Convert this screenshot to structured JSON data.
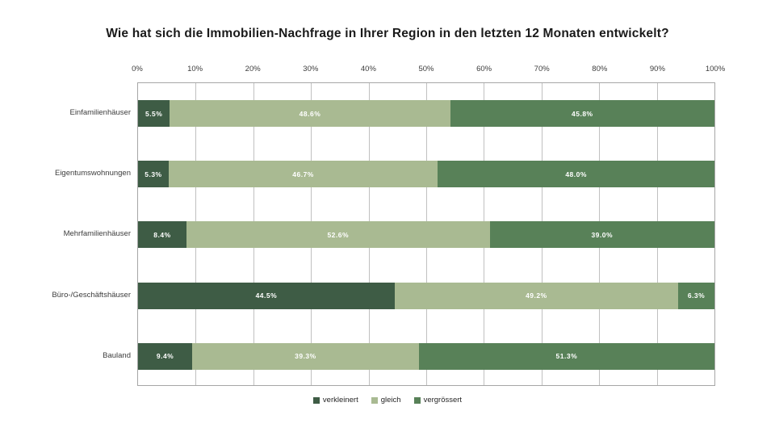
{
  "title": "Wie hat sich die Immobilien-Nachfrage in Ihrer Region in den letzten 12 Monaten entwickelt?",
  "chart_data": {
    "type": "bar",
    "subtype": "horizontal-stacked-100",
    "title": "Wie hat sich die Immobilien-Nachfrage in Ihrer Region in den letzten 12 Monaten entwickelt?",
    "categories": [
      "Einfamilienhäuser",
      "Eigentumswohnungen",
      "Mehrfamilienhäuser",
      "Büro-/Geschäftshäuser",
      "Bauland"
    ],
    "series": [
      {
        "name": "verkleinert",
        "color": "#3e5c45",
        "values": [
          5.5,
          5.3,
          8.4,
          44.5,
          9.4
        ]
      },
      {
        "name": "gleich",
        "color": "#a9ba92",
        "values": [
          48.6,
          46.7,
          52.6,
          49.2,
          39.3
        ]
      },
      {
        "name": "vergrössert",
        "color": "#588158",
        "values": [
          45.8,
          48.0,
          39.0,
          6.3,
          51.3
        ]
      }
    ],
    "value_label_suffix": "%",
    "x_axis": {
      "position": "top",
      "min": 0,
      "max": 100,
      "tick_labels": [
        "0%",
        "10%",
        "20%",
        "30%",
        "40%",
        "50%",
        "60%",
        "70%",
        "80%",
        "90%",
        "100%"
      ]
    },
    "legend": {
      "position": "bottom",
      "entries": [
        "verkleinert",
        "gleich",
        "vergrössert"
      ]
    },
    "grid": true
  },
  "colors": {
    "background": "#ffffff",
    "gridline": "#c0c0c0",
    "plot_border": "#a6a6a6",
    "axis_text": "#3c3c3c",
    "bar_label_text": "#ffffff",
    "title_text": "#1a1a1a"
  }
}
